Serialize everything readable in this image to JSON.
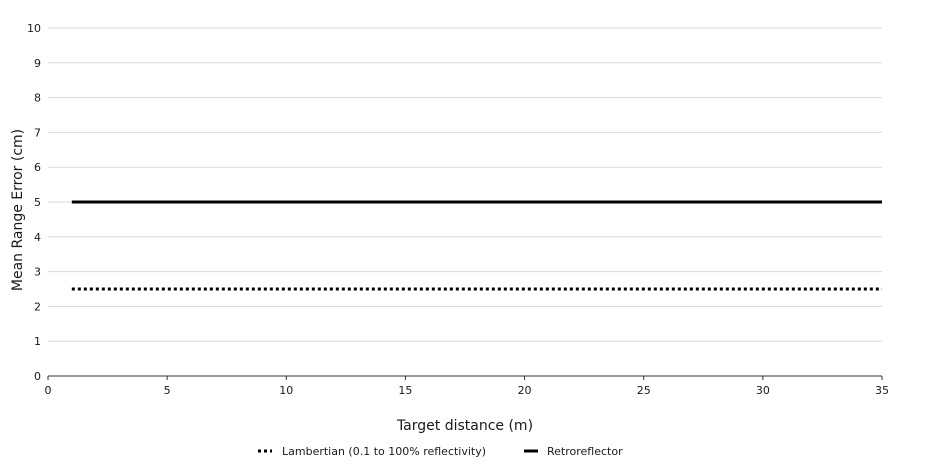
{
  "chart_data": {
    "type": "line",
    "title": "",
    "xlabel": "Target distance (m)",
    "ylabel": "Mean Range Error (cm)",
    "xlim": [
      0,
      35
    ],
    "ylim": [
      0,
      10
    ],
    "xticks": [
      0,
      5,
      10,
      15,
      20,
      25,
      30,
      35
    ],
    "yticks": [
      0,
      1,
      2,
      3,
      4,
      5,
      6,
      7,
      8,
      9,
      10
    ],
    "grid": "horizontal",
    "legend_position": "bottom",
    "series": [
      {
        "name": "Lambertian (0.1 to 100% reflectivity)",
        "style": "dotted",
        "color": "#000000",
        "x": [
          1,
          35
        ],
        "y": [
          2.5,
          2.5
        ]
      },
      {
        "name": "Retroreflector",
        "style": "solid",
        "color": "#000000",
        "x": [
          1,
          35
        ],
        "y": [
          5,
          5
        ]
      }
    ]
  }
}
